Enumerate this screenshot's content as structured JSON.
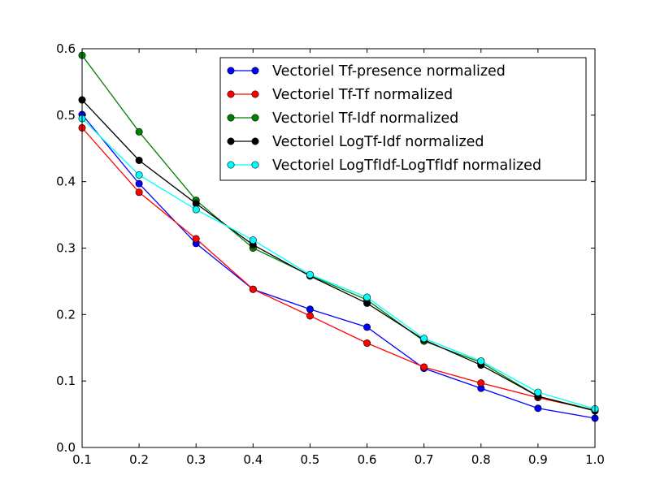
{
  "chart_data": {
    "type": "line",
    "title": "",
    "xlabel": "",
    "ylabel": "",
    "xlim": [
      0.1,
      1.0
    ],
    "ylim": [
      0.0,
      0.6
    ],
    "x": [
      0.1,
      0.2,
      0.3,
      0.4,
      0.5,
      0.6,
      0.7,
      0.8,
      0.9,
      1.0
    ],
    "x_ticks": [
      "0.1",
      "0.2",
      "0.3",
      "0.4",
      "0.5",
      "0.6",
      "0.7",
      "0.8",
      "0.9",
      "1.0"
    ],
    "y_ticks": [
      "0.0",
      "0.1",
      "0.2",
      "0.3",
      "0.4",
      "0.5",
      "0.6"
    ],
    "y_tick_values": [
      0.0,
      0.1,
      0.2,
      0.3,
      0.4,
      0.5,
      0.6
    ],
    "grid": false,
    "legend_position": "top-right",
    "series": [
      {
        "name": "Vectoriel Tf-presence normalized",
        "color": "#0000ff",
        "values": [
          0.501,
          0.397,
          0.307,
          0.238,
          0.208,
          0.181,
          0.119,
          0.089,
          0.059,
          0.044
        ]
      },
      {
        "name": "Vectoriel Tf-Tf normalized",
        "color": "#ff0000",
        "values": [
          0.481,
          0.384,
          0.314,
          0.238,
          0.198,
          0.157,
          0.121,
          0.097,
          0.075,
          0.056
        ]
      },
      {
        "name": "Vectoriel Tf-Idf normalized",
        "color": "#008000",
        "values": [
          0.59,
          0.475,
          0.372,
          0.3,
          0.259,
          0.222,
          0.16,
          0.128,
          0.077,
          0.056
        ]
      },
      {
        "name": "Vectoriel LogTf-Idf normalized",
        "color": "#000000",
        "values": [
          0.523,
          0.432,
          0.367,
          0.305,
          0.258,
          0.217,
          0.162,
          0.124,
          0.077,
          0.055
        ]
      },
      {
        "name": "Vectoriel LogTfIdf-LogTfIdf normalized",
        "color": "#00ffff",
        "values": [
          0.495,
          0.41,
          0.358,
          0.312,
          0.26,
          0.226,
          0.164,
          0.13,
          0.083,
          0.058
        ]
      }
    ]
  }
}
